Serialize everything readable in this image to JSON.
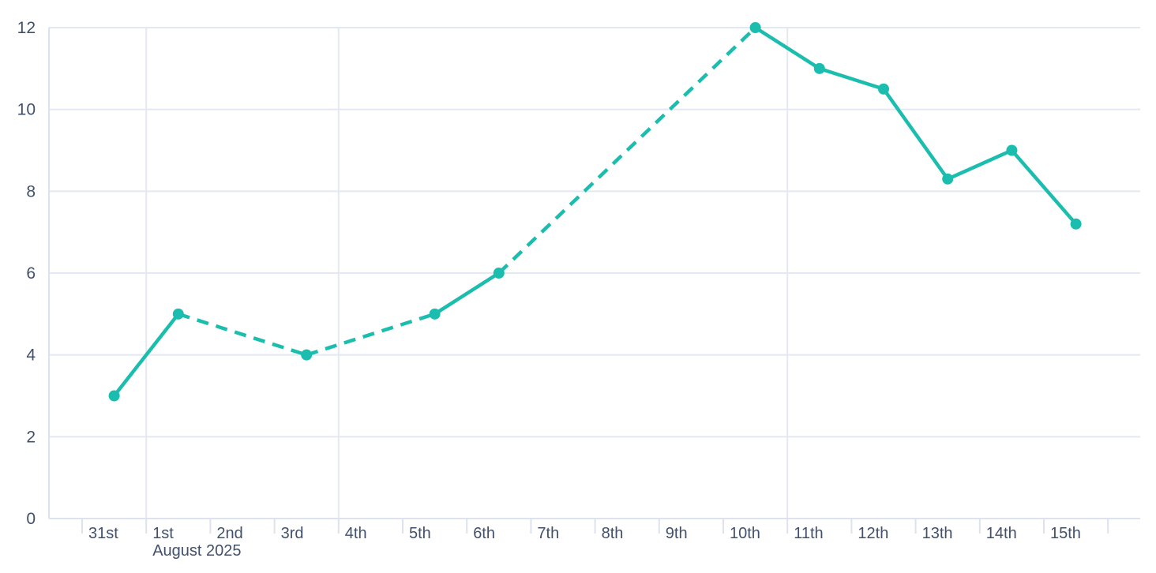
{
  "chart_data": {
    "type": "line",
    "title": "",
    "legend": null,
    "x_axis": {
      "tick_labels": [
        "31st",
        "1st",
        "2nd",
        "3rd",
        "4th",
        "5th",
        "6th",
        "7th",
        "8th",
        "9th",
        "10th",
        "11th",
        "12th",
        "13th",
        "14th",
        "15th"
      ],
      "month_label": "August 2025",
      "month_label_under": "1st",
      "num_boundary_ticks": 17
    },
    "y_axis": {
      "tick_labels": [
        "0",
        "2",
        "4",
        "6",
        "8",
        "10",
        "12"
      ],
      "tick_values": [
        0,
        2,
        4,
        6,
        8,
        10,
        12
      ],
      "range": [
        0,
        12
      ]
    },
    "gridlines": {
      "horizontal_at": [
        2,
        4,
        6,
        8,
        10,
        12
      ],
      "vertical_at_labels": [
        "1st",
        "4th",
        "11th"
      ],
      "grid_on": true
    },
    "series": [
      {
        "name": "daily-values",
        "marker": "circle",
        "points": [
          {
            "x_label": "31st",
            "day_index": 0,
            "value": 3
          },
          {
            "x_label": "1st",
            "day_index": 1,
            "value": 5
          },
          {
            "x_label": "3rd",
            "day_index": 3,
            "value": 4
          },
          {
            "x_label": "5th",
            "day_index": 5,
            "value": 5
          },
          {
            "x_label": "6th",
            "day_index": 6,
            "value": 6
          },
          {
            "x_label": "10th",
            "day_index": 10,
            "value": 12
          },
          {
            "x_label": "11th",
            "day_index": 11,
            "value": 11
          },
          {
            "x_label": "12th",
            "day_index": 12,
            "value": 10.5
          },
          {
            "x_label": "13th",
            "day_index": 13,
            "value": 8.3
          },
          {
            "x_label": "14th",
            "day_index": 14,
            "value": 9
          },
          {
            "x_label": "15th",
            "day_index": 15,
            "value": 7.2
          }
        ],
        "segment_styles": [
          "solid",
          "dashed",
          "dashed",
          "solid",
          "dashed",
          "solid",
          "solid",
          "solid",
          "solid",
          "solid"
        ]
      }
    ],
    "colors": {
      "line": "#1bbdae",
      "grid": "#e4e8f3",
      "axis": "#dde2ee",
      "text": "#42506b",
      "background": "#ffffff"
    }
  }
}
